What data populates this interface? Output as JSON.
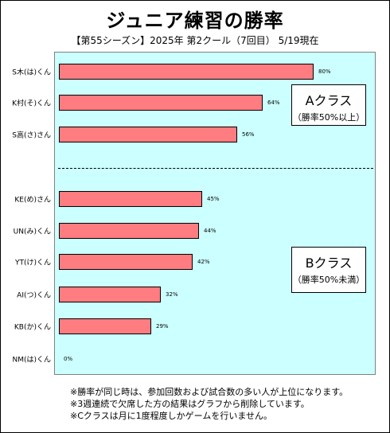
{
  "chart_data": {
    "type": "bar",
    "orientation": "horizontal",
    "title": "ジュニア練習の勝率",
    "subtitle": "【第55シーズン】2025年 第2クール（7回目） 5/19現在",
    "categories": [
      "S木(は)くん",
      "K村(そ)くん",
      "S高(さ)さん",
      "KE(め)さん",
      "UN(み)くん",
      "YT(け)くん",
      "AI(つ)くん",
      "KB(か)くん",
      "NM(は)くん"
    ],
    "values": [
      80,
      64,
      56,
      45,
      44,
      42,
      32,
      29,
      0
    ],
    "value_labels": [
      "80%",
      "64%",
      "56%",
      "45%",
      "44%",
      "42%",
      "32%",
      "29%",
      "0%"
    ],
    "xlim": [
      0,
      100
    ],
    "groups": [
      {
        "title": "Aクラス",
        "note": "（勝率50%以上）"
      },
      {
        "title": "Bクラス",
        "note": "（勝率50%未満）"
      }
    ],
    "grid": false,
    "legend": "none"
  },
  "notes": [
    "※勝率が同じ時は、参加回数および試合数の多い人が上位になります。",
    "※3週連続で欠席した方の結果はグラフから削除しています。",
    "※Cクラスは月に1度程度しかゲームを行いません。"
  ],
  "colors": {
    "plot_background": "#ccffff",
    "bar_fill": "#ff7c80",
    "bar_border": "#000000"
  }
}
